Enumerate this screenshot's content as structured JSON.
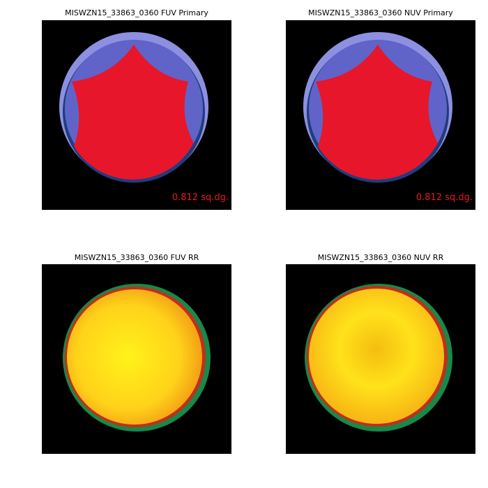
{
  "panels": [
    {
      "title": "MISWZN15_33863_0360 FUV Primary",
      "label": "0.812 sq.dg."
    },
    {
      "title": "MISWZN15_33863_0360 NUV Primary",
      "label": "0.812 sq.dg."
    },
    {
      "title": "MISWZN15_33863_0360 FUV RR"
    },
    {
      "title": "MISWZN15_33863_0360 NUV RR"
    }
  ]
}
